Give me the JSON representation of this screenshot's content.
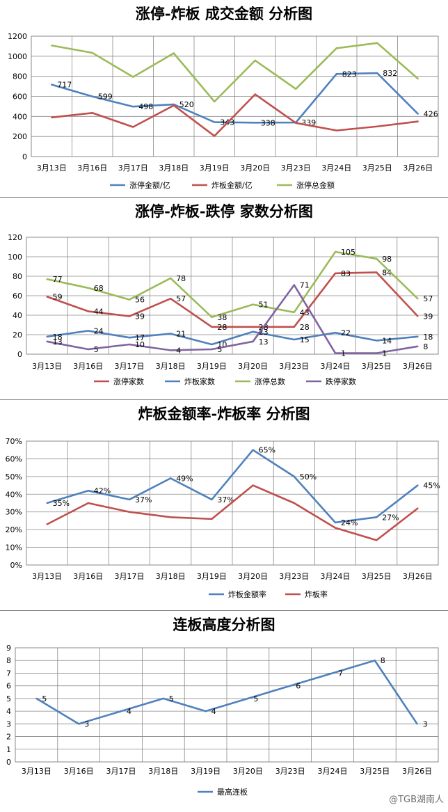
{
  "chart_data": [
    {
      "type": "line",
      "title": "涨停-炸板 成交金额 分析图",
      "categories": [
        "3月13日",
        "3月16日",
        "3月17日",
        "3月18日",
        "3月19日",
        "3月20日",
        "3月23日",
        "3月24日",
        "3月25日",
        "3月26日"
      ],
      "ylim": [
        0,
        1200
      ],
      "yticks": [
        0,
        200,
        400,
        600,
        800,
        1000,
        1200
      ],
      "grid": true,
      "legend": "bottom",
      "series": [
        {
          "name": "涨停金额/亿",
          "color": "#4f81bd",
          "values": [
            717,
            599,
            498,
            520,
            343,
            338,
            339,
            823,
            832,
            426
          ],
          "labels": [
            "717",
            "599",
            "498",
            "520",
            "343",
            "338",
            "339",
            "823",
            "832",
            "426"
          ]
        },
        {
          "name": "炸板金额/亿",
          "color": "#c0504d",
          "values": [
            390,
            435,
            295,
            510,
            205,
            620,
            335,
            260,
            300,
            350
          ]
        },
        {
          "name": "涨停总金额",
          "color": "#9bbb59",
          "values": [
            1107,
            1034,
            793,
            1030,
            548,
            958,
            674,
            1080,
            1132,
            776
          ]
        }
      ]
    },
    {
      "type": "line",
      "title": "涨停-炸板-跌停 家数分析图",
      "categories": [
        "3月13日",
        "3月16日",
        "3月17日",
        "3月18日",
        "3月19日",
        "3月20日",
        "3月23日",
        "3月24日",
        "3月25日",
        "3月26日"
      ],
      "ylim": [
        0,
        120
      ],
      "yticks": [
        0,
        20,
        40,
        60,
        80,
        100,
        120
      ],
      "grid": true,
      "legend": "bottom",
      "series": [
        {
          "name": "涨停家数",
          "color": "#c0504d",
          "values": [
            59,
            44,
            39,
            57,
            28,
            28,
            28,
            83,
            84,
            39
          ],
          "labels": [
            "59",
            "44",
            "39",
            "57",
            "28",
            "28",
            "28",
            "83",
            "84",
            "39"
          ]
        },
        {
          "name": "炸板家数",
          "color": "#4f81bd",
          "values": [
            18,
            24,
            17,
            21,
            10,
            23,
            15,
            22,
            14,
            18
          ],
          "labels": [
            "18",
            "24",
            "17",
            "21",
            "10",
            "23",
            "15",
            "22",
            "14",
            "18"
          ]
        },
        {
          "name": "涨停总数",
          "color": "#9bbb59",
          "values": [
            77,
            68,
            56,
            78,
            38,
            51,
            43,
            105,
            98,
            57
          ],
          "labels": [
            "77",
            "68",
            "56",
            "78",
            "38",
            "51",
            "43",
            "105",
            "98",
            "57"
          ]
        },
        {
          "name": "跌停家数",
          "color": "#8064a2",
          "values": [
            13,
            5,
            10,
            4,
            5,
            13,
            71,
            1,
            1,
            8
          ],
          "labels": [
            "13",
            "5",
            "10",
            "4",
            "5",
            "13",
            "71",
            "1",
            "1",
            "8"
          ]
        }
      ]
    },
    {
      "type": "line",
      "title": "炸板金额率-炸板率 分析图",
      "categories": [
        "3月13日",
        "3月16日",
        "3月17日",
        "3月18日",
        "3月19日",
        "3月20日",
        "3月23日",
        "3月24日",
        "3月25日",
        "3月26日"
      ],
      "ylim": [
        0,
        70
      ],
      "yticks": [
        0,
        10,
        20,
        30,
        40,
        50,
        60,
        70
      ],
      "yunit": "%",
      "grid": true,
      "legend": "bottom",
      "series": [
        {
          "name": "炸板金额率",
          "color": "#4f81bd",
          "values": [
            35,
            42,
            37,
            49,
            37,
            65,
            50,
            24,
            27,
            45
          ],
          "labels": [
            "35%",
            "42%",
            "37%",
            "49%",
            "37%",
            "65%",
            "50%",
            "24%",
            "27%",
            "45%"
          ]
        },
        {
          "name": "炸板率",
          "color": "#c0504d",
          "values": [
            23,
            35,
            30,
            27,
            26,
            45,
            35,
            21,
            14,
            32
          ]
        }
      ]
    },
    {
      "type": "line",
      "title": "连板高度分析图",
      "categories": [
        "3月13日",
        "3月16日",
        "3月17日",
        "3月18日",
        "3月19日",
        "3月20日",
        "3月23日",
        "3月24日",
        "3月25日",
        "3月26日"
      ],
      "ylim": [
        0,
        9
      ],
      "yticks": [
        0,
        1,
        2,
        3,
        4,
        5,
        6,
        7,
        8,
        9
      ],
      "grid": true,
      "legend": "bottom",
      "series": [
        {
          "name": "最高连板",
          "color": "#4f81bd",
          "values": [
            5,
            3,
            4,
            5,
            4,
            5,
            6,
            7,
            8,
            3
          ],
          "labels": [
            "5",
            "3",
            "4",
            "5",
            "4",
            "5",
            "6",
            "7",
            "8",
            "3"
          ]
        }
      ]
    }
  ],
  "watermark": "@TGB湖南人"
}
